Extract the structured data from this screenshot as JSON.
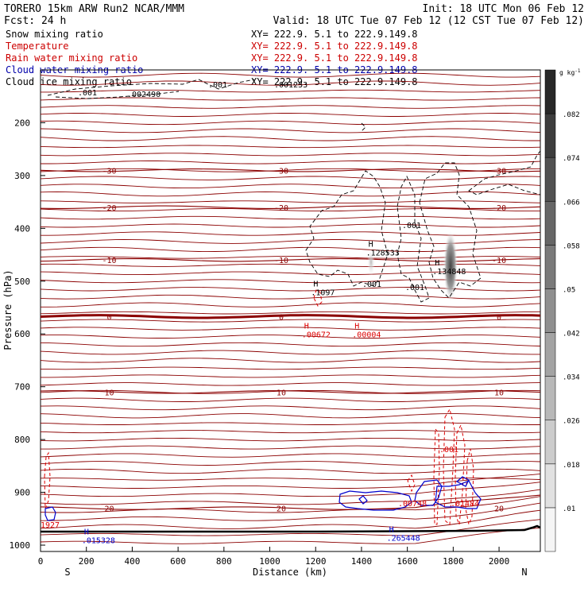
{
  "header": {
    "model": "TORERO  15km ARW   Run2    NCAR/MMM",
    "init": "Init: 18 UTC Mon 06 Feb 12",
    "fcst": "Fcst:   24 h",
    "valid": "Valid: 18 UTC Tue 07 Feb 12 (12 CST Tue 07 Feb 12)"
  },
  "legend": [
    {
      "label": "Snow mixing ratio",
      "xy": "XY= 222.9.  5.1 to 222.9.149.8",
      "color": "#000000"
    },
    {
      "label": "Temperature",
      "xy": "XY= 222.9.  5.1 to 222.9.149.8",
      "color": "#cc0000"
    },
    {
      "label": "Rain water mixing ratio",
      "xy": "XY= 222.9.  5.1 to 222.9.149.8",
      "color": "#cc0000"
    },
    {
      "label": "Cloud water mixing ratio",
      "xy": "XY= 222.9.  5.1 to 222.9.149.8",
      "color": "#0000aa"
    },
    {
      "label": "Cloud ice mixing ratio",
      "xy": "XY= 222.9.  5.1 to 222.9.149.8",
      "color": "#000000"
    }
  ],
  "chart_data": {
    "type": "cross-section contour",
    "xlabel": "Distance (km)",
    "ylabel": "Pressure (hPa)",
    "x_ticks": [
      0,
      200,
      400,
      600,
      800,
      1000,
      1200,
      1400,
      1600,
      1800,
      2000
    ],
    "x_range": [
      0,
      2180
    ],
    "y_ticks": [
      200,
      300,
      400,
      500,
      600,
      700,
      800,
      900,
      1000
    ],
    "y_range": [
      100,
      1012
    ],
    "end_labels": {
      "left": "S",
      "right": "N"
    },
    "temperature_contours": [
      {
        "value": -30,
        "pressure": 290
      },
      {
        "value": -20,
        "pressure": 360
      },
      {
        "value": -10,
        "pressure": 460
      },
      {
        "value": 0,
        "pressure": 567
      },
      {
        "value": 10,
        "pressure": 710
      },
      {
        "value": 20,
        "pressure": 930
      }
    ],
    "snow_contour_label": ".001",
    "maxima": [
      {
        "mark": "H",
        "value": ".128533",
        "x": 1430,
        "p": 435,
        "field": "snow"
      },
      {
        "mark": "H",
        "value": ".134848",
        "x": 1720,
        "p": 470,
        "field": "snow"
      },
      {
        "mark": "H",
        "value": ".1097",
        "x": 1190,
        "p": 510,
        "field": "snow"
      },
      {
        "mark": "H",
        "value": ".00672",
        "x": 1150,
        "p": 590,
        "field": "rain"
      },
      {
        "mark": "H",
        "value": ".00004",
        "x": 1370,
        "p": 590,
        "field": "rain"
      },
      {
        "mark": "H",
        "value": ".015328",
        "x": 190,
        "p": 980,
        "field": "cloud water"
      },
      {
        "mark": "H",
        "value": ".265448",
        "x": 1520,
        "p": 975,
        "field": "cloud water"
      }
    ],
    "colorbar": {
      "unit": "g kg",
      "unit_exp": "-1",
      "labels": [
        ".01",
        ".018",
        ".026",
        ".034",
        ".042",
        ".05",
        ".058",
        ".066",
        ".074",
        ".082"
      ]
    },
    "extra_labels": [
      ".002490",
      ".001253",
      ".001",
      ".001",
      ".001",
      ".001",
      ".001",
      ".01484",
      ".00748",
      "1927"
    ]
  },
  "colors": {
    "temperature": "#8b0000",
    "rain": "#dd0000",
    "cloud_water": "#0000cc",
    "snow": "#000000"
  }
}
